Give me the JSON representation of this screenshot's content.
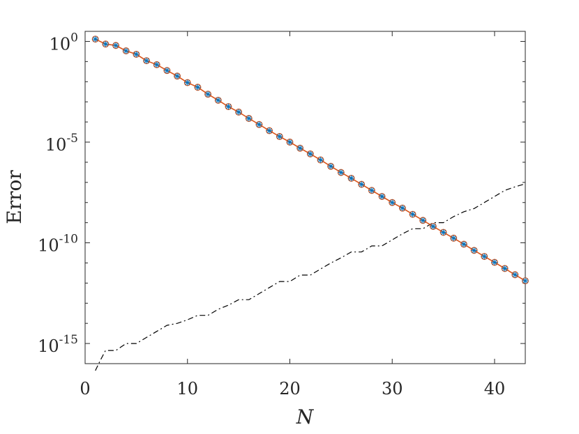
{
  "chart_data": {
    "type": "line",
    "xlabel": "N",
    "ylabel": "Error",
    "xlim": [
      0,
      43
    ],
    "ylim_log10": [
      -16,
      0.5
    ],
    "yscale": "log",
    "grid": false,
    "legend": "none",
    "x_ticks": [
      {
        "value": 0,
        "label": "0"
      },
      {
        "value": 10,
        "label": "10"
      },
      {
        "value": 20,
        "label": "20"
      },
      {
        "value": 30,
        "label": "30"
      },
      {
        "value": 40,
        "label": "40"
      }
    ],
    "y_ticks": [
      {
        "value": 1,
        "base": "10",
        "exp": "0"
      },
      {
        "value": 1e-05,
        "base": "10",
        "exp": "-5"
      },
      {
        "value": 1e-10,
        "base": "10",
        "exp": "-10"
      },
      {
        "value": 1e-15,
        "base": "10",
        "exp": "-15"
      }
    ],
    "x": [
      1,
      2,
      3,
      4,
      5,
      6,
      7,
      8,
      9,
      10,
      11,
      12,
      13,
      14,
      15,
      16,
      17,
      18,
      19,
      20,
      21,
      22,
      23,
      24,
      25,
      26,
      27,
      28,
      29,
      30,
      31,
      32,
      33,
      34,
      35,
      36,
      37,
      38,
      39,
      40,
      41,
      42,
      43
    ],
    "series": [
      {
        "color": "#D95319",
        "style": "solid-line-circle-markers",
        "values": [
          1.3,
          0.74,
          0.63,
          0.34,
          0.23,
          0.11,
          0.07,
          0.036,
          0.019,
          0.009,
          0.0053,
          0.0024,
          0.0012,
          0.00058,
          0.00031,
          0.00015,
          7.5e-05,
          3.7e-05,
          1.9e-05,
          1e-05,
          5e-06,
          2.6e-06,
          1.3e-06,
          6.3e-07,
          3.1e-07,
          1.6e-07,
          8e-08,
          4e-08,
          2e-08,
          1e-08,
          5.3e-09,
          2.6e-09,
          1.3e-09,
          6.5e-10,
          3.3e-10,
          1.7e-10,
          8.5e-11,
          4.2e-11,
          2.1e-11,
          1.07e-11,
          5.3e-12,
          2.6e-12,
          1.3e-12
        ]
      },
      {
        "color": "#0072BD",
        "style": "star-markers",
        "values": [
          1.3,
          0.74,
          0.63,
          0.34,
          0.23,
          0.11,
          0.07,
          0.036,
          0.019,
          0.009,
          0.0053,
          0.0024,
          0.0012,
          0.00058,
          0.00031,
          0.00015,
          7.5e-05,
          3.7e-05,
          1.9e-05,
          1e-05,
          5e-06,
          2.6e-06,
          1.3e-06,
          6.3e-07,
          3.1e-07,
          1.6e-07,
          8e-08,
          4e-08,
          2e-08,
          1e-08,
          5.3e-09,
          2.6e-09,
          1.3e-09,
          6.5e-10,
          3.3e-10,
          1.7e-10,
          8.5e-11,
          4.2e-11,
          2.1e-11,
          1.07e-11,
          5.3e-12,
          2.6e-12,
          1.3e-12
        ]
      },
      {
        "color": "#000000",
        "style": "dash-dot-line",
        "x": [
          1,
          1.5,
          2,
          3,
          4,
          5,
          6,
          7,
          8,
          9,
          10,
          11,
          12,
          13,
          14,
          15,
          16,
          17,
          18,
          19,
          20,
          21,
          22,
          23,
          24,
          25,
          26,
          27,
          28,
          29,
          30,
          31,
          32,
          33,
          34,
          35,
          36,
          37,
          38,
          39,
          40,
          41,
          42,
          43
        ],
        "values": [
          4e-17,
          1.5e-16,
          4.5e-16,
          4.5e-16,
          1e-15,
          1e-15,
          2e-15,
          4e-15,
          8e-15,
          1e-14,
          1.5e-14,
          2.5e-14,
          2.5e-14,
          5e-14,
          8e-14,
          1.5e-13,
          1.5e-13,
          3e-13,
          6e-13,
          1.2e-12,
          1.2e-12,
          2.5e-12,
          2.5e-12,
          5e-12,
          1e-11,
          1.8e-11,
          3.5e-11,
          3.5e-11,
          7e-11,
          7e-11,
          1.4e-10,
          2.8e-10,
          5e-10,
          5e-10,
          1e-09,
          1e-09,
          2e-09,
          3.5e-09,
          5e-09,
          1e-08,
          2e-08,
          4e-08,
          6e-08,
          8.5e-08
        ]
      }
    ]
  }
}
